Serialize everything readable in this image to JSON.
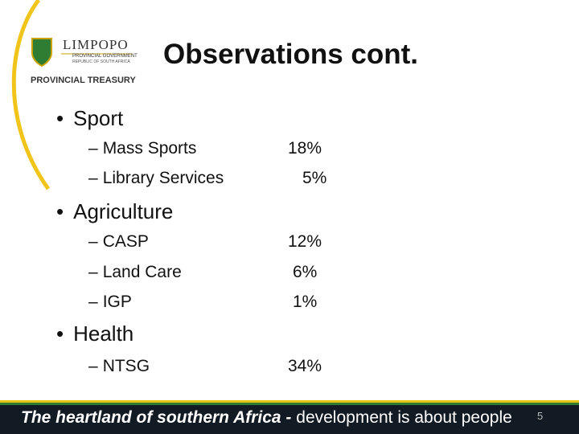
{
  "header": {
    "logo": {
      "name": "LIMPOPO",
      "line1": "PROVINCIAL GOVERNMENT",
      "line2": "REPUBLIC OF SOUTH AFRICA",
      "department": "PROVINCIAL TREASURY"
    },
    "title": "Observations cont."
  },
  "sections": [
    {
      "label": "Sport",
      "items": [
        {
          "label": "Mass Sports",
          "share": "18%"
        },
        {
          "label": "Library Services",
          "share": "5%"
        }
      ]
    },
    {
      "label": "Agriculture",
      "items": [
        {
          "label": "CASP",
          "share": "12%"
        },
        {
          "label": "Land Care",
          "share": "6%"
        },
        {
          "label": "IGP",
          "share": "1%"
        }
      ]
    },
    {
      "label": "Health",
      "items": [
        {
          "label": "NTSG",
          "share": "34%"
        }
      ]
    }
  ],
  "footer": {
    "tagline_emphasis": "The heartland of southern Africa -",
    "tagline": "development is about people",
    "slide_number": "5"
  }
}
